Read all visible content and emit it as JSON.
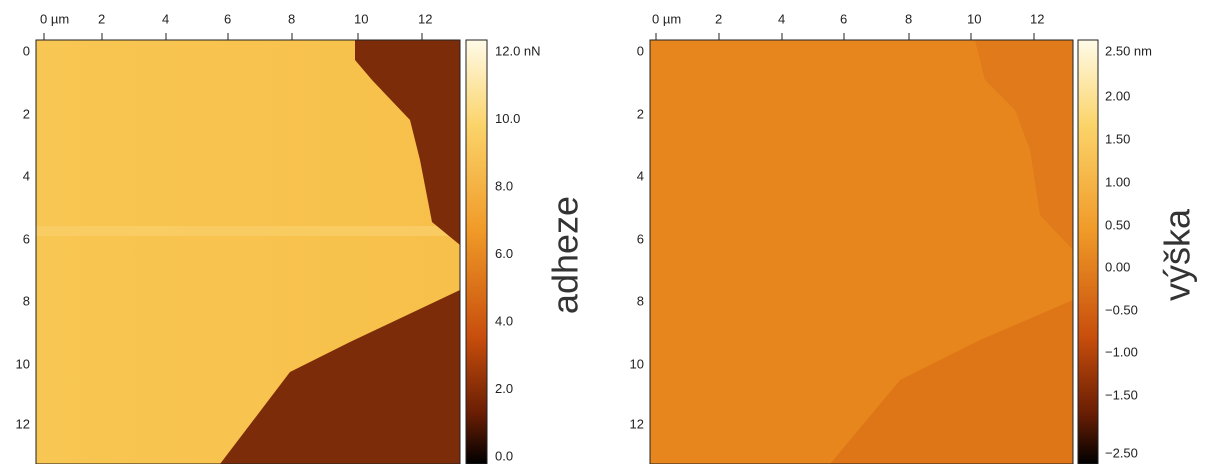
{
  "panels": [
    {
      "x_ticks": [
        "0 µm",
        "2",
        "4",
        "6",
        "8",
        "10",
        "12"
      ],
      "y_ticks": [
        "0",
        "2",
        "4",
        "6",
        "8",
        "10",
        "12"
      ],
      "colorbar_ticks": [
        "12.0 nN",
        "10.0",
        "8.0",
        "6.0",
        "4.0",
        "2.0",
        "0.0"
      ],
      "colorbar_label": "adheze"
    },
    {
      "x_ticks": [
        "0 µm",
        "2",
        "4",
        "6",
        "8",
        "10",
        "12"
      ],
      "y_ticks": [
        "0",
        "2",
        "4",
        "6",
        "8",
        "10",
        "12"
      ],
      "colorbar_ticks": [
        "2.50 nm",
        "2.00",
        "1.50",
        "1.00",
        "0.50",
        "0.00",
        "−0.50",
        "−1.00",
        "−1.50",
        "−2.50"
      ],
      "colorbar_label": "výška"
    }
  ]
}
